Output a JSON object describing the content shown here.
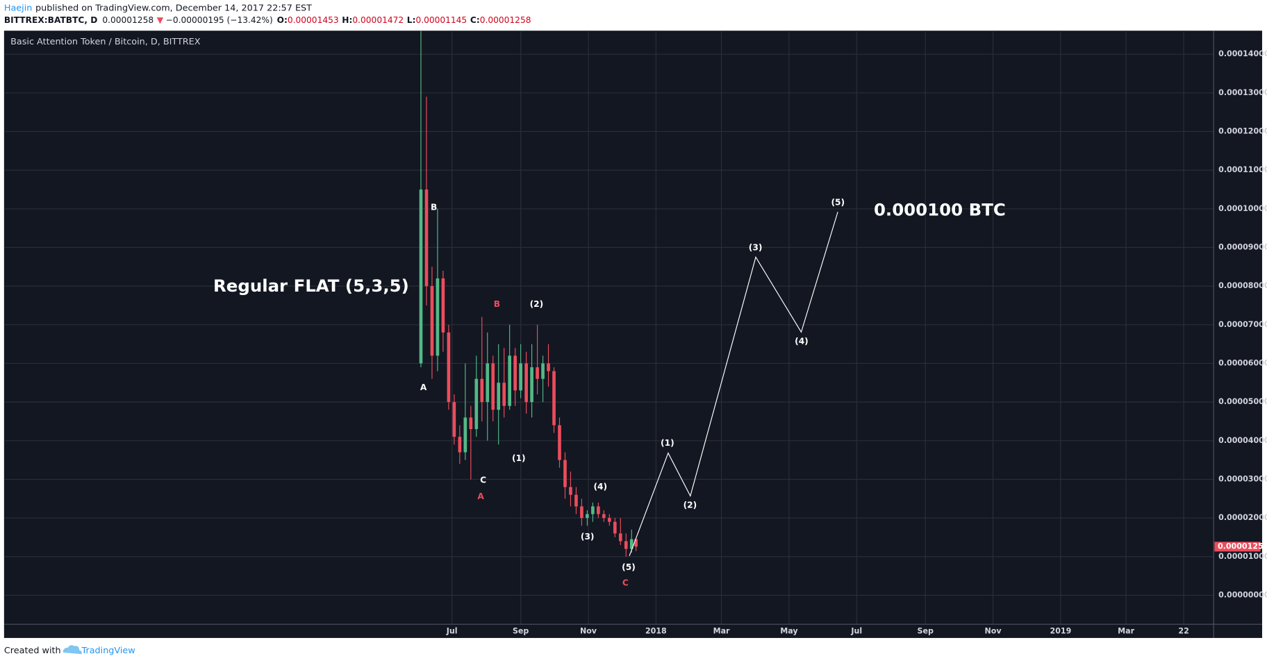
{
  "header": {
    "author": "Haejin",
    "published": "published on TradingView.com, December 14, 2017 22:57 EST",
    "symbol": "BITTREX:BATBTC, D",
    "arrow": "▼",
    "change": "−0.00000195 (−13.42%)",
    "ohlc_labels": [
      "O:",
      "H:",
      "L:",
      "C:"
    ]
  },
  "footer": {
    "created": "Created with",
    "brand": "TradingView"
  },
  "chart_data": {
    "type": "candlestick",
    "title": "Basic Attention Token / Bitcoin, D, BITTREX",
    "x": [
      "2017-06-03",
      "2017-06-08",
      "2017-06-13",
      "2017-06-18",
      "2017-06-23",
      "2017-06-28",
      "2017-07-03",
      "2017-07-08",
      "2017-07-13",
      "2017-07-18",
      "2017-07-23",
      "2017-07-28",
      "2017-08-02",
      "2017-08-07",
      "2017-08-12",
      "2017-08-17",
      "2017-08-22",
      "2017-08-27",
      "2017-09-01",
      "2017-09-06",
      "2017-09-11",
      "2017-09-16",
      "2017-09-21",
      "2017-09-26",
      "2017-10-01",
      "2017-10-06",
      "2017-10-11",
      "2017-10-16",
      "2017-10-21",
      "2017-10-26",
      "2017-10-31",
      "2017-11-05",
      "2017-11-10",
      "2017-11-15",
      "2017-11-20",
      "2017-11-25",
      "2017-11-30",
      "2017-12-05",
      "2017-12-10",
      "2017-12-14"
    ],
    "open": [
      6e-05,
      0.000105,
      8e-05,
      6.2e-05,
      8.2e-05,
      6.8e-05,
      5e-05,
      4.1e-05,
      3.7e-05,
      4.6e-05,
      4.3e-05,
      5.6e-05,
      5e-05,
      6e-05,
      4.8e-05,
      5.5e-05,
      4.9e-05,
      6.2e-05,
      5.3e-05,
      6e-05,
      5e-05,
      5.9e-05,
      5.6e-05,
      6e-05,
      5.8e-05,
      4.4e-05,
      3.5e-05,
      2.8e-05,
      2.6e-05,
      2.3e-05,
      2e-05,
      2.1e-05,
      2.3e-05,
      2.1e-05,
      2e-05,
      1.9e-05,
      1.6e-05,
      1.4e-05,
      1.2e-05,
      1.453e-05
    ],
    "high": [
      0.000146,
      0.000129,
      8.5e-05,
      0.0001,
      8.4e-05,
      7e-05,
      5.2e-05,
      4.4e-05,
      6e-05,
      4.9e-05,
      6.2e-05,
      7.2e-05,
      6.8e-05,
      6.2e-05,
      6.5e-05,
      6.4e-05,
      7e-05,
      6.4e-05,
      6.5e-05,
      6.3e-05,
      6.5e-05,
      7e-05,
      6.2e-05,
      6.5e-05,
      5.9e-05,
      4.6e-05,
      3.7e-05,
      3.2e-05,
      2.8e-05,
      2.5e-05,
      2.2e-05,
      2.4e-05,
      2.4e-05,
      2.2e-05,
      2.1e-05,
      2e-05,
      2e-05,
      1.6e-05,
      1.7e-05,
      1.472e-05
    ],
    "low": [
      5.9e-05,
      7.5e-05,
      5.6e-05,
      5.8e-05,
      6.3e-05,
      4.8e-05,
      3.9e-05,
      3.4e-05,
      3.5e-05,
      3e-05,
      4.1e-05,
      4.5e-05,
      4e-05,
      4.5e-05,
      3.9e-05,
      4.6e-05,
      4.8e-05,
      4.9e-05,
      5.1e-05,
      4.7e-05,
      4.6e-05,
      5.2e-05,
      5e-05,
      5.4e-05,
      4.2e-05,
      3.3e-05,
      2.5e-05,
      2.3e-05,
      2.1e-05,
      1.8e-05,
      1.8e-05,
      1.9e-05,
      2e-05,
      1.9e-05,
      1.8e-05,
      1.5e-05,
      1.3e-05,
      1e-05,
      1.1e-05,
      1.145e-05
    ],
    "close": [
      0.000105,
      8e-05,
      6.2e-05,
      8.2e-05,
      6.8e-05,
      5e-05,
      4.1e-05,
      3.7e-05,
      4.6e-05,
      4.3e-05,
      5.6e-05,
      5e-05,
      6e-05,
      4.8e-05,
      5.5e-05,
      4.9e-05,
      6.2e-05,
      5.3e-05,
      6e-05,
      5e-05,
      5.9e-05,
      5.6e-05,
      6e-05,
      5.8e-05,
      4.4e-05,
      3.5e-05,
      2.8e-05,
      2.6e-05,
      2.3e-05,
      2e-05,
      2.1e-05,
      2.3e-05,
      2.1e-05,
      2e-05,
      1.9e-05,
      1.6e-05,
      1.4e-05,
      1.2e-05,
      1.45e-05,
      1.258e-05
    ],
    "up_color": "#53b987",
    "down_color": "#eb4d5c",
    "xlim": [
      "2016-05-23",
      "2019-05-19"
    ],
    "xticks": [
      {
        "value": "2017-07-01",
        "label": "Jul"
      },
      {
        "value": "2017-09-01",
        "label": "Sep"
      },
      {
        "value": "2017-11-01",
        "label": "Nov"
      },
      {
        "value": "2018-01-01",
        "label": "2018"
      },
      {
        "value": "2018-03-01",
        "label": "Mar"
      },
      {
        "value": "2018-05-01",
        "label": "May"
      },
      {
        "value": "2018-07-01",
        "label": "Jul"
      },
      {
        "value": "2018-09-01",
        "label": "Sep"
      },
      {
        "value": "2018-11-01",
        "label": "Nov"
      },
      {
        "value": "2019-01-01",
        "label": "2019"
      },
      {
        "value": "2019-03-01",
        "label": "Mar"
      },
      {
        "value": "2019-04-22",
        "label": "22"
      }
    ],
    "ylim": [
      -7.5e-06,
      0.0001461
    ],
    "yticks": [
      {
        "value": 0,
        "label": "0.00000000"
      },
      {
        "value": 1e-05,
        "label": "0.00001000"
      },
      {
        "value": 2e-05,
        "label": "0.00002000"
      },
      {
        "value": 3e-05,
        "label": "0.00003000"
      },
      {
        "value": 4e-05,
        "label": "0.00004000"
      },
      {
        "value": 5e-05,
        "label": "0.00005000"
      },
      {
        "value": 6e-05,
        "label": "0.00006000"
      },
      {
        "value": 7e-05,
        "label": "0.00007000"
      },
      {
        "value": 8e-05,
        "label": "0.00008000"
      },
      {
        "value": 9e-05,
        "label": "0.00009000"
      },
      {
        "value": 0.0001,
        "label": "0.00010000"
      },
      {
        "value": 0.00011,
        "label": "0.00011000"
      },
      {
        "value": 0.00012,
        "label": "0.00012000"
      },
      {
        "value": 0.00013,
        "label": "0.00013000"
      },
      {
        "value": 0.00014,
        "label": "0.00014000"
      }
    ],
    "grid": true,
    "projection": {
      "x": [
        "2017-12-08",
        "2018-01-12",
        "2018-02-01",
        "2018-04-01",
        "2018-05-12",
        "2018-06-14"
      ],
      "values": [
        1.02e-05,
        3.68e-05,
        2.57e-05,
        8.75e-05,
        6.81e-05,
        9.92e-05
      ],
      "color": "#ffffff"
    },
    "annotations": [
      {
        "text": "B",
        "color": "#ffffff"
      },
      {
        "text": "A",
        "color": "#ffffff"
      },
      {
        "text": "C",
        "color": "#ffffff"
      },
      {
        "text": "A",
        "color": "#eb4d5c"
      },
      {
        "text": "B",
        "color": "#eb4d5c"
      },
      {
        "text": "(2)",
        "color": "#ffffff"
      },
      {
        "text": "(1)",
        "color": "#ffffff"
      },
      {
        "text": "(4)",
        "color": "#ffffff"
      },
      {
        "text": "(3)",
        "color": "#ffffff"
      },
      {
        "text": "(5)",
        "color": "#ffffff"
      },
      {
        "text": "C",
        "color": "#eb4d5c"
      },
      {
        "text": "(1)",
        "color": "#ffffff"
      },
      {
        "text": "(2)",
        "color": "#ffffff"
      },
      {
        "text": "(3)",
        "color": "#ffffff"
      },
      {
        "text": "(4)",
        "color": "#ffffff"
      },
      {
        "text": "(5)",
        "color": "#ffffff"
      },
      {
        "text": "Regular FLAT (5,3,5)",
        "color": "#ffffff"
      },
      {
        "text": "0.000100 BTC",
        "color": "#ffffff"
      }
    ]
  }
}
